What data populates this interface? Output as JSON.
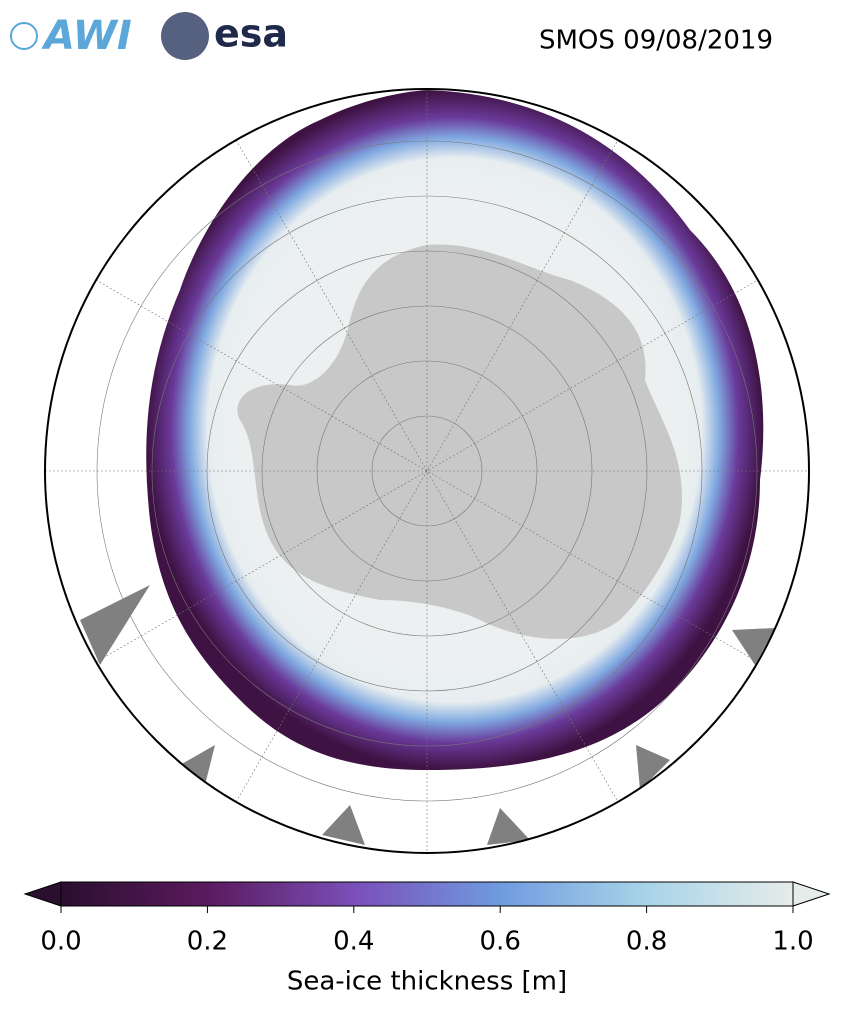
{
  "logos": {
    "awi": "AWI",
    "esa": "esa"
  },
  "title": "SMOS 09/08/2019",
  "colorbar": {
    "label": "Sea-ice thickness [m]",
    "lim": [
      0,
      1
    ],
    "ticks": [
      {
        "value": 0,
        "label": "0.0"
      },
      0.2,
      0.4,
      0.6,
      0.8,
      {
        "value": 1,
        "label": "1.0"
      }
    ],
    "colors": [
      "#2a0f2e",
      "#5a1a5e",
      "#7a4fb8",
      "#6f9be0",
      "#a8d4e8",
      "#e6ecea"
    ]
  }
}
